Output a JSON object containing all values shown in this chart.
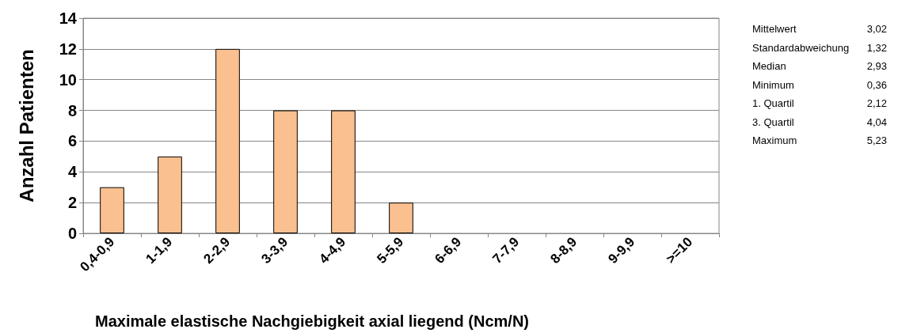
{
  "chart_data": {
    "type": "bar",
    "categories": [
      "0,4-0,9",
      "1-1,9",
      "2-2,9",
      "3-3,9",
      "4-4,9",
      "5-5,9",
      "6-6,9",
      "7-7,9",
      "8-8,9",
      "9-9,9",
      ">=10"
    ],
    "values": [
      3,
      5,
      12,
      8,
      8,
      2,
      0,
      0,
      0,
      0,
      0
    ],
    "color": "#fac090",
    "xlabel": "Maximale elastische Nachgiebigkeit axial liegend (Ncm/N)",
    "ylabel": "Anzahl Patienten",
    "ylim": [
      0,
      14
    ],
    "yticks": [
      0,
      2,
      4,
      6,
      8,
      10,
      12,
      14
    ],
    "grid": "y",
    "annotations": [
      "Mittelwert 3,02",
      "Standardabweichung 1,32",
      "Median 2,93",
      "Minimum 0,36",
      "1. Quartil 2,12",
      "3. Quartil 4,04",
      "Maximum 5,23"
    ]
  }
}
